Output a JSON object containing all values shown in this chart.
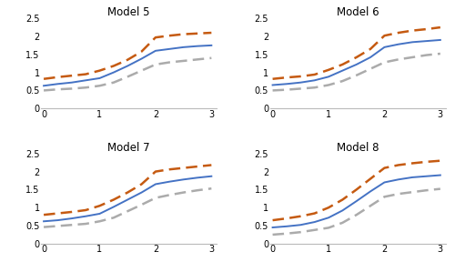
{
  "models": [
    "Model 5",
    "Model 6",
    "Model 7",
    "Model 8"
  ],
  "x": [
    0,
    0.25,
    0.5,
    0.75,
    1.0,
    1.25,
    1.5,
    1.75,
    2.0,
    2.25,
    2.5,
    2.75,
    3.0
  ],
  "irf": [
    [
      0.63,
      0.68,
      0.72,
      0.78,
      0.84,
      1.0,
      1.18,
      1.38,
      1.6,
      1.65,
      1.7,
      1.73,
      1.75
    ],
    [
      0.65,
      0.68,
      0.72,
      0.78,
      0.88,
      1.05,
      1.22,
      1.42,
      1.7,
      1.78,
      1.84,
      1.87,
      1.9
    ],
    [
      0.62,
      0.65,
      0.7,
      0.76,
      0.83,
      1.02,
      1.22,
      1.42,
      1.65,
      1.72,
      1.78,
      1.83,
      1.87
    ],
    [
      0.45,
      0.48,
      0.52,
      0.6,
      0.72,
      0.92,
      1.18,
      1.45,
      1.7,
      1.78,
      1.84,
      1.87,
      1.9
    ]
  ],
  "upper_ci": [
    [
      0.82,
      0.87,
      0.91,
      0.95,
      1.05,
      1.18,
      1.35,
      1.58,
      1.97,
      2.02,
      2.06,
      2.08,
      2.1
    ],
    [
      0.82,
      0.86,
      0.89,
      0.94,
      1.07,
      1.22,
      1.42,
      1.65,
      2.02,
      2.1,
      2.16,
      2.2,
      2.25
    ],
    [
      0.8,
      0.84,
      0.88,
      0.93,
      1.05,
      1.22,
      1.42,
      1.65,
      2.0,
      2.06,
      2.1,
      2.14,
      2.18
    ],
    [
      0.65,
      0.7,
      0.76,
      0.84,
      1.0,
      1.22,
      1.5,
      1.8,
      2.1,
      2.18,
      2.23,
      2.27,
      2.3
    ]
  ],
  "lower_ci": [
    [
      0.5,
      0.53,
      0.55,
      0.58,
      0.63,
      0.72,
      0.88,
      1.05,
      1.22,
      1.28,
      1.32,
      1.36,
      1.4
    ],
    [
      0.5,
      0.52,
      0.55,
      0.58,
      0.65,
      0.76,
      0.92,
      1.1,
      1.28,
      1.36,
      1.42,
      1.48,
      1.52
    ],
    [
      0.46,
      0.49,
      0.52,
      0.55,
      0.62,
      0.72,
      0.9,
      1.08,
      1.27,
      1.35,
      1.42,
      1.48,
      1.53
    ],
    [
      0.25,
      0.28,
      0.32,
      0.38,
      0.44,
      0.58,
      0.8,
      1.05,
      1.3,
      1.38,
      1.43,
      1.48,
      1.52
    ]
  ],
  "irf_color": "#4472C4",
  "upper_color": "#C55A11",
  "lower_color": "#ABABAB",
  "irf_lw": 1.4,
  "ci_lw": 1.8,
  "title_fontsize": 8.5,
  "tick_fontsize": 7,
  "ylim": [
    0,
    2.5
  ],
  "yticks": [
    0,
    0.5,
    1,
    1.5,
    2,
    2.5
  ],
  "xlim": [
    -0.05,
    3.1
  ],
  "xticks": [
    0,
    1,
    2,
    3
  ]
}
